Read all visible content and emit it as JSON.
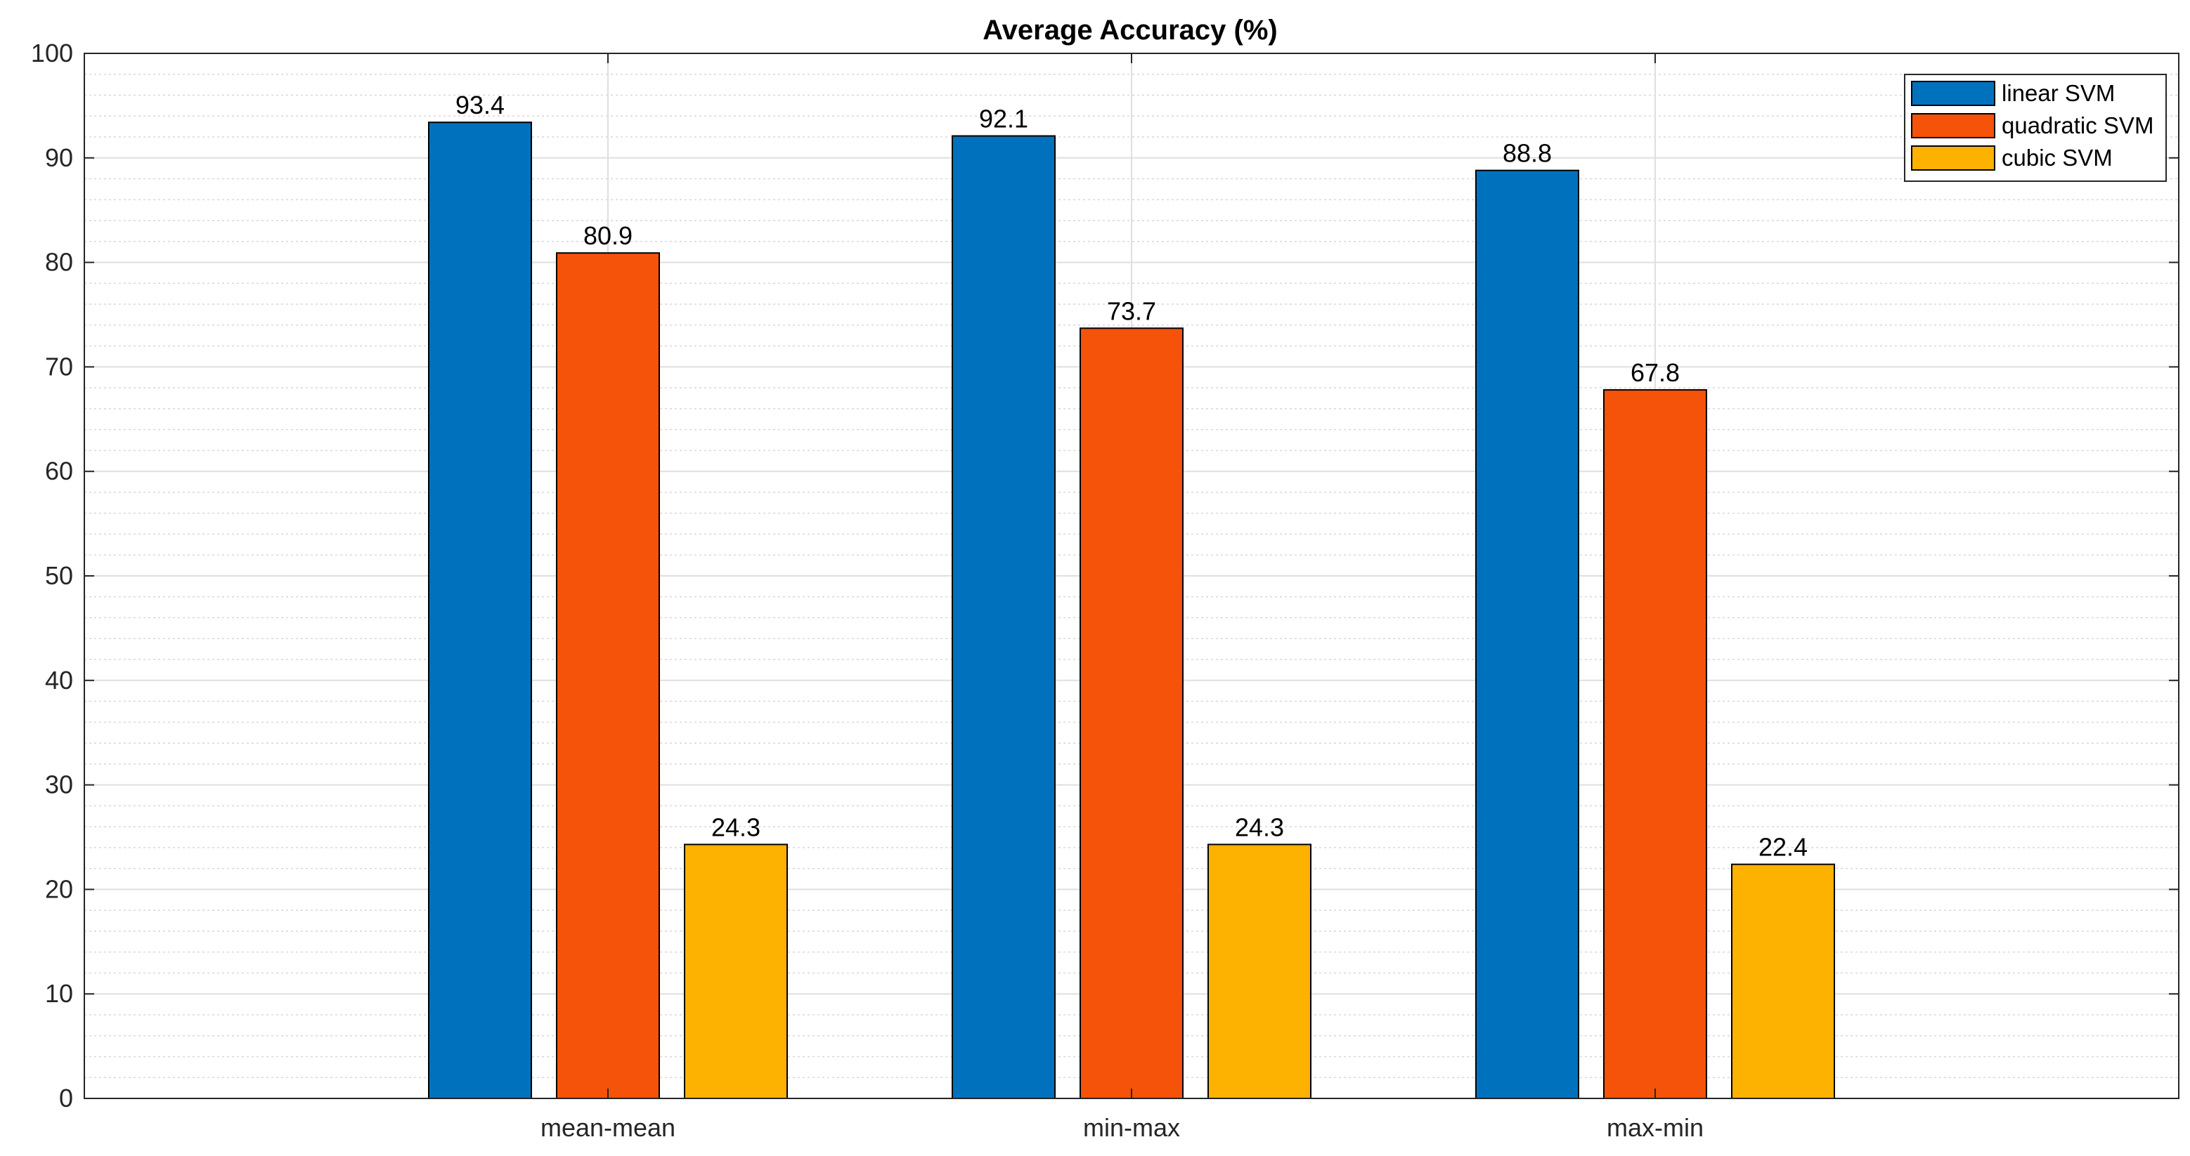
{
  "chart_data": {
    "type": "bar",
    "title": "Average Accuracy (%)",
    "xlabel": "",
    "ylabel": "",
    "categories": [
      "mean-mean",
      "min-max",
      "max-min"
    ],
    "series": [
      {
        "name": "linear SVM",
        "color": "#0072BD",
        "values": [
          93.4,
          92.1,
          88.8
        ],
        "labels": [
          "93.4",
          "92.1",
          "88.8"
        ]
      },
      {
        "name": "quadratic SVM",
        "color": "#F5520A",
        "values": [
          80.9,
          73.7,
          67.8
        ],
        "labels": [
          "80.9",
          "73.7",
          "67.8"
        ]
      },
      {
        "name": "cubic SVM",
        "color": "#FDB100",
        "values": [
          24.3,
          24.3,
          22.4
        ],
        "labels": [
          "24.3",
          "24.3",
          "22.4"
        ]
      }
    ],
    "ylim": [
      0,
      100
    ],
    "yticks": [
      0,
      10,
      20,
      30,
      40,
      50,
      60,
      70,
      80,
      90,
      100
    ],
    "ytick_labels": [
      "0",
      "10",
      "20",
      "30",
      "40",
      "50",
      "60",
      "70",
      "80",
      "90",
      "100"
    ],
    "grid": true,
    "minor_grid": true,
    "legend_position": "top-right"
  }
}
